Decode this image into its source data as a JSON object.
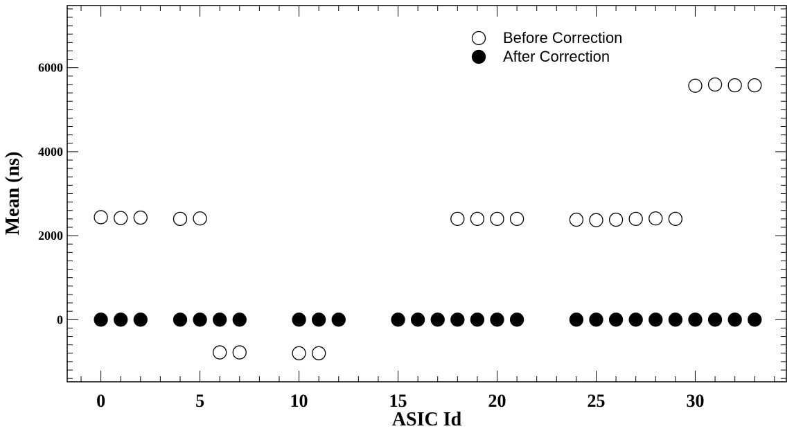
{
  "chart_data": {
    "type": "scatter",
    "xlabel": "ASIC Id",
    "ylabel": "Mean (ns)",
    "xlim": [
      -1.7,
      34.6
    ],
    "ylim": [
      -1480,
      7480
    ],
    "x_ticks": [
      0,
      5,
      10,
      15,
      20,
      25,
      30
    ],
    "y_ticks": [
      0,
      2000,
      4000,
      6000
    ],
    "grid": false,
    "legend_position": "top-right",
    "series": [
      {
        "name": "Before Correction",
        "marker": "open-circle",
        "color": "#000000",
        "points": [
          [
            0,
            2440
          ],
          [
            1,
            2420
          ],
          [
            2,
            2430
          ],
          [
            4,
            2400
          ],
          [
            5,
            2410
          ],
          [
            6,
            -780
          ],
          [
            7,
            -780
          ],
          [
            10,
            -800
          ],
          [
            11,
            -800
          ],
          [
            18,
            2400
          ],
          [
            19,
            2400
          ],
          [
            20,
            2400
          ],
          [
            21,
            2400
          ],
          [
            24,
            2380
          ],
          [
            25,
            2370
          ],
          [
            26,
            2380
          ],
          [
            27,
            2400
          ],
          [
            28,
            2410
          ],
          [
            29,
            2400
          ],
          [
            30,
            5570
          ],
          [
            31,
            5600
          ],
          [
            32,
            5580
          ],
          [
            33,
            5580
          ]
        ]
      },
      {
        "name": "After Correction",
        "marker": "filled-circle",
        "color": "#000000",
        "points": [
          [
            0,
            0
          ],
          [
            1,
            0
          ],
          [
            2,
            0
          ],
          [
            4,
            0
          ],
          [
            5,
            0
          ],
          [
            6,
            0
          ],
          [
            7,
            0
          ],
          [
            10,
            0
          ],
          [
            11,
            0
          ],
          [
            12,
            0
          ],
          [
            15,
            0
          ],
          [
            16,
            0
          ],
          [
            17,
            0
          ],
          [
            18,
            0
          ],
          [
            19,
            0
          ],
          [
            20,
            0
          ],
          [
            21,
            0
          ],
          [
            24,
            0
          ],
          [
            25,
            0
          ],
          [
            26,
            0
          ],
          [
            27,
            0
          ],
          [
            28,
            0
          ],
          [
            29,
            0
          ],
          [
            30,
            0
          ],
          [
            31,
            0
          ],
          [
            32,
            0
          ],
          [
            33,
            0
          ]
        ]
      }
    ]
  }
}
